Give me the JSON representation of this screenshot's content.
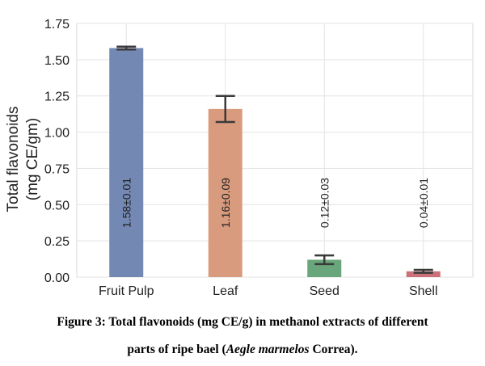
{
  "chart_data": {
    "type": "bar",
    "ylabel_line1": "Total flavonoids",
    "ylabel_line2": "(mg CE/gm)",
    "xlabel": "",
    "categories": [
      "Fruit Pulp",
      "Leaf",
      "Seed",
      "Shell"
    ],
    "values": [
      1.58,
      1.16,
      0.12,
      0.04
    ],
    "errors": [
      0.01,
      0.09,
      0.03,
      0.01
    ],
    "value_labels": [
      "1.58±0.01",
      "1.16±0.09",
      "0.12±0.03",
      "0.04±0.01"
    ],
    "colors": [
      "#7388b3",
      "#d99b7e",
      "#6aa67c",
      "#cc6f78"
    ],
    "ylim": [
      0,
      1.75
    ],
    "yticks": [
      "0.00",
      "0.25",
      "0.50",
      "0.75",
      "1.00",
      "1.25",
      "1.50",
      "1.75"
    ],
    "grid": true
  },
  "caption": {
    "line1": "Figure 3: Total flavonoids (mg CE/g) in methanol extracts of different",
    "line2_prefix": "parts of ripe bael (",
    "line2_italic": "Aegle marmelos",
    "line2_suffix": " Correa)."
  }
}
